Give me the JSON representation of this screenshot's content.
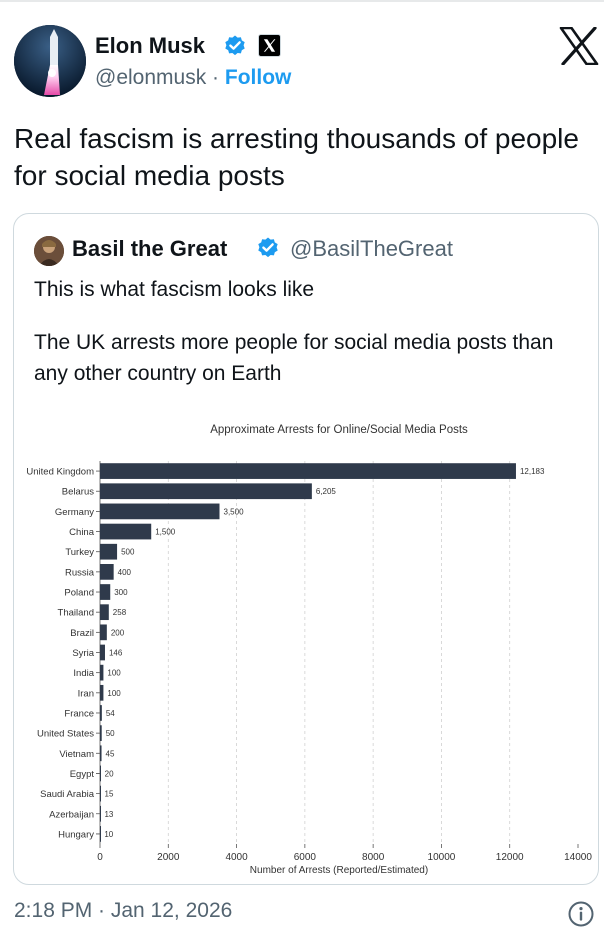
{
  "author": {
    "name": "Elon Musk",
    "handle": "@elonmusk",
    "separator": "·",
    "follow_label": "Follow",
    "avatar_icon": "rocket-avatar-icon",
    "verified_color": "#1d9bf0"
  },
  "tweet": {
    "text": "Real fascism is arresting thousands of people for social media posts",
    "timestamp": "2:18 PM · Jan 12, 2026"
  },
  "quoted": {
    "name": "Basil the Great",
    "handle": "@BasilTheGreat",
    "paragraph1": "This is what fascism looks like",
    "paragraph2": "The UK arrests more people for social media posts than any other country on Earth"
  },
  "chart_data": {
    "type": "bar",
    "orientation": "horizontal",
    "title": "Approximate Arrests for Online/Social Media Posts",
    "xlabel": "Number of Arrests (Reported/Estimated)",
    "ylabel": "",
    "xlim": [
      0,
      14000
    ],
    "xticks": [
      "0",
      "2000",
      "4000",
      "6000",
      "8000",
      "10000",
      "12000",
      "14000"
    ],
    "grid": "vertical dashed",
    "bar_color": "#2f3a4b",
    "categories": [
      "United Kingdom",
      "Belarus",
      "Germany",
      "China",
      "Turkey",
      "Russia",
      "Poland",
      "Thailand",
      "Brazil",
      "Syria",
      "India",
      "Iran",
      "France",
      "United States",
      "Vietnam",
      "Egypt",
      "Saudi Arabia",
      "Azerbaijan",
      "Hungary"
    ],
    "values": [
      12183,
      6205,
      3500,
      1500,
      500,
      400,
      300,
      258,
      200,
      146,
      100,
      100,
      54,
      50,
      45,
      20,
      15,
      13,
      10
    ],
    "value_labels": [
      "12,183",
      "6,205",
      "3,500",
      "1,500",
      "500",
      "400",
      "300",
      "258",
      "200",
      "146",
      "100",
      "100",
      "54",
      "50",
      "45",
      "20",
      "15",
      "13",
      "10"
    ]
  }
}
